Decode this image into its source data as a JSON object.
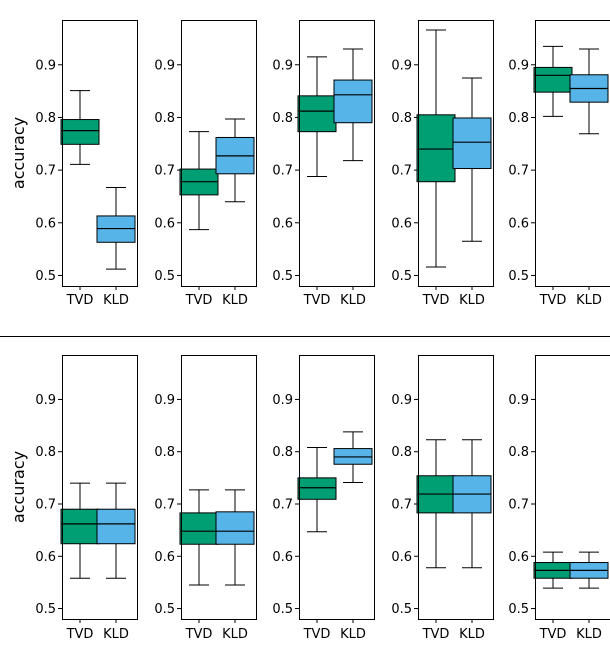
{
  "chart_data": {
    "type": "box",
    "categories": [
      "TVD",
      "KLD"
    ],
    "colors": {
      "TVD": "#009e73",
      "KLD": "#56b4e9"
    },
    "ylim": [
      0.48,
      0.985
    ],
    "yticks": [
      "0.5",
      "0.6",
      "0.7",
      "0.8",
      "0.9"
    ],
    "rows": [
      {
        "ylabel": "accuracy",
        "panels": [
          {
            "boxes": [
              {
                "whislo": 0.711,
                "q1": 0.749,
                "med": 0.775,
                "q3": 0.796,
                "whishi": 0.851
              },
              {
                "whislo": 0.512,
                "q1": 0.563,
                "med": 0.589,
                "q3": 0.613,
                "whishi": 0.667
              }
            ]
          },
          {
            "boxes": [
              {
                "whislo": 0.587,
                "q1": 0.653,
                "med": 0.678,
                "q3": 0.702,
                "whishi": 0.773
              },
              {
                "whislo": 0.64,
                "q1": 0.693,
                "med": 0.727,
                "q3": 0.762,
                "whishi": 0.797
              }
            ]
          },
          {
            "boxes": [
              {
                "whislo": 0.688,
                "q1": 0.773,
                "med": 0.812,
                "q3": 0.841,
                "whishi": 0.915
              },
              {
                "whislo": 0.718,
                "q1": 0.79,
                "med": 0.843,
                "q3": 0.871,
                "whishi": 0.93
              }
            ]
          },
          {
            "boxes": [
              {
                "whislo": 0.516,
                "q1": 0.678,
                "med": 0.74,
                "q3": 0.805,
                "whishi": 0.966
              },
              {
                "whislo": 0.565,
                "q1": 0.703,
                "med": 0.753,
                "q3": 0.799,
                "whishi": 0.875
              }
            ]
          },
          {
            "boxes": [
              {
                "whislo": 0.802,
                "q1": 0.848,
                "med": 0.88,
                "q3": 0.895,
                "whishi": 0.935
              },
              {
                "whislo": 0.769,
                "q1": 0.829,
                "med": 0.855,
                "q3": 0.881,
                "whishi": 0.93
              }
            ]
          }
        ]
      },
      {
        "ylabel": "accuracy",
        "panels": [
          {
            "boxes": [
              {
                "whislo": 0.558,
                "q1": 0.624,
                "med": 0.662,
                "q3": 0.69,
                "whishi": 0.74
              },
              {
                "whislo": 0.558,
                "q1": 0.624,
                "med": 0.662,
                "q3": 0.69,
                "whishi": 0.74
              }
            ]
          },
          {
            "boxes": [
              {
                "whislo": 0.545,
                "q1": 0.623,
                "med": 0.648,
                "q3": 0.683,
                "whishi": 0.727
              },
              {
                "whislo": 0.545,
                "q1": 0.623,
                "med": 0.648,
                "q3": 0.685,
                "whishi": 0.727
              }
            ]
          },
          {
            "boxes": [
              {
                "whislo": 0.647,
                "q1": 0.709,
                "med": 0.731,
                "q3": 0.75,
                "whishi": 0.808
              },
              {
                "whislo": 0.741,
                "q1": 0.776,
                "med": 0.79,
                "q3": 0.806,
                "whishi": 0.838
              }
            ]
          },
          {
            "boxes": [
              {
                "whislo": 0.578,
                "q1": 0.683,
                "med": 0.719,
                "q3": 0.754,
                "whishi": 0.823
              },
              {
                "whislo": 0.578,
                "q1": 0.683,
                "med": 0.719,
                "q3": 0.754,
                "whishi": 0.823
              }
            ]
          },
          {
            "boxes": [
              {
                "whislo": 0.539,
                "q1": 0.558,
                "med": 0.573,
                "q3": 0.588,
                "whishi": 0.608
              },
              {
                "whislo": 0.539,
                "q1": 0.558,
                "med": 0.573,
                "q3": 0.588,
                "whishi": 0.608
              }
            ]
          }
        ]
      }
    ]
  }
}
